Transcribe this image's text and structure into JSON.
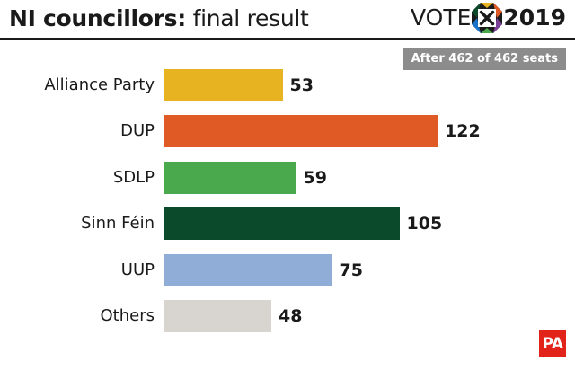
{
  "header": {
    "title_bold": "NI councillors:",
    "title_light": "final result",
    "logo_vote": "VOTE",
    "logo_year": "2019"
  },
  "seats_note": "After 462 of 462 seats",
  "pa_logo": "PA",
  "chart_data": {
    "type": "bar",
    "orientation": "horizontal",
    "title": "NI councillors: final result",
    "subtitle": "After 462 of 462 seats",
    "categories": [
      "Alliance Party",
      "DUP",
      "SDLP",
      "Sinn Féin",
      "UUP",
      "Others"
    ],
    "values": [
      53,
      122,
      59,
      105,
      75,
      48
    ],
    "colors": [
      "#e8b321",
      "#e05a26",
      "#4aa84d",
      "#0c4a2c",
      "#8fadd6",
      "#d8d5d0"
    ],
    "xlim": [
      0,
      135
    ],
    "grid": false,
    "legend": "none"
  }
}
